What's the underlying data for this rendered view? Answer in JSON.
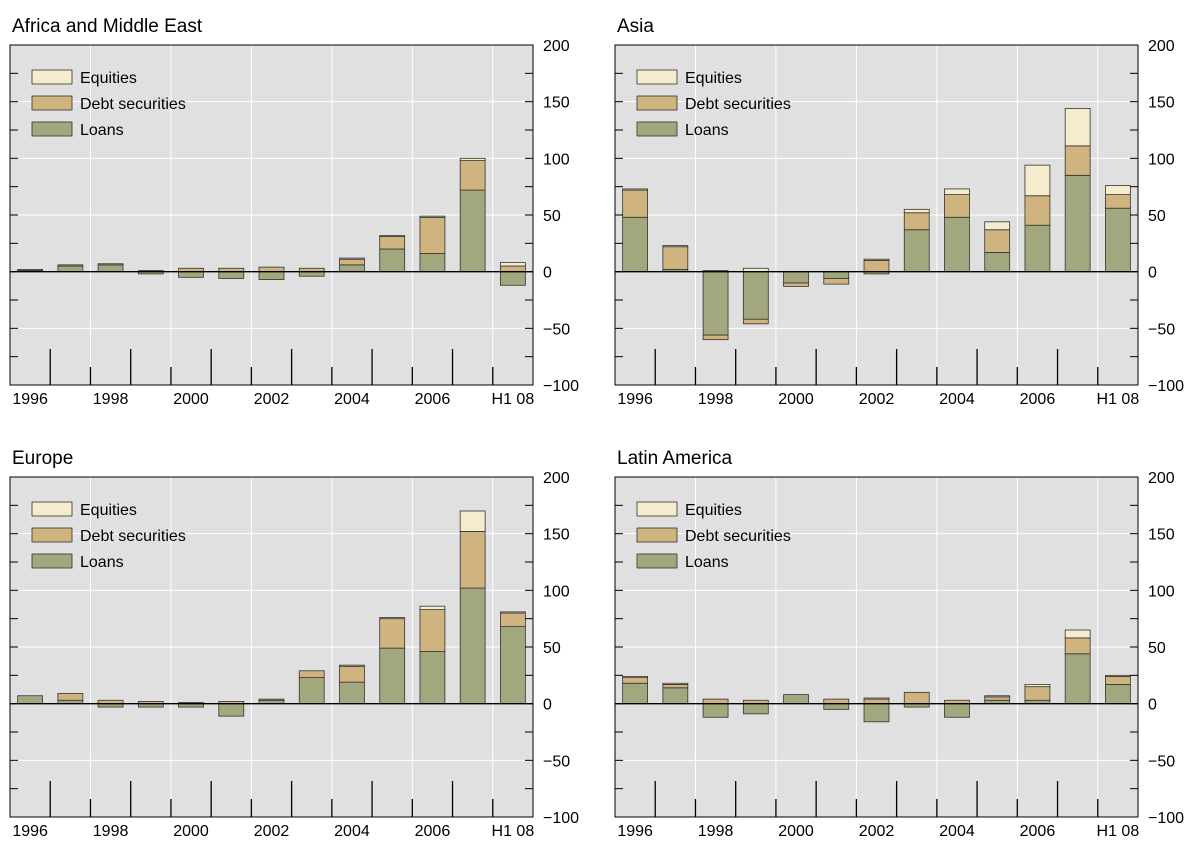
{
  "colors": {
    "equities": "#f4eccc",
    "debt": "#cfb47f",
    "loans": "#a3a77e",
    "plot_bg": "#e0e0e0",
    "grid": "#ffffff"
  },
  "legend": {
    "equities": "Equities",
    "debt": "Debt securities",
    "loans": "Loans"
  },
  "chart_data": [
    {
      "type": "bar",
      "stacked": true,
      "title": "Africa and Middle East",
      "categories": [
        "1996",
        "1997",
        "1998",
        "1999",
        "2000",
        "2001",
        "2002",
        "2003",
        "2004",
        "2005",
        "2006",
        "2007",
        "H1 08"
      ],
      "x_tick_labels": [
        "1996",
        "1998",
        "2000",
        "2002",
        "2004",
        "2006",
        "H1 08"
      ],
      "ylim": [
        -100,
        200
      ],
      "y_ticks": [
        -100,
        -50,
        0,
        50,
        100,
        150,
        200
      ],
      "y_tick_labels": [
        "−100",
        "−50",
        "0",
        "50",
        "100",
        "150",
        "200"
      ],
      "grid": true,
      "legend_position": "top-left",
      "series": [
        {
          "name": "Loans",
          "values": [
            1,
            5,
            6,
            -2,
            -5,
            -6,
            -7,
            -4,
            6,
            20,
            16,
            72,
            -12
          ]
        },
        {
          "name": "Debt securities",
          "values": [
            1,
            1,
            1,
            1,
            3,
            3,
            4,
            3,
            5,
            11,
            32,
            26,
            5
          ]
        },
        {
          "name": "Equities",
          "values": [
            0,
            0,
            0,
            0,
            0,
            0,
            0,
            0,
            1,
            1,
            1,
            2,
            3
          ]
        }
      ]
    },
    {
      "type": "bar",
      "stacked": true,
      "title": "Asia",
      "categories": [
        "1996",
        "1997",
        "1998",
        "1999",
        "2000",
        "2001",
        "2002",
        "2003",
        "2004",
        "2005",
        "2006",
        "2007",
        "H1 08"
      ],
      "x_tick_labels": [
        "1996",
        "1998",
        "2000",
        "2002",
        "2004",
        "2006",
        "H1 08"
      ],
      "ylim": [
        -100,
        200
      ],
      "y_ticks": [
        -100,
        -50,
        0,
        50,
        100,
        150,
        200
      ],
      "y_tick_labels": [
        "−100",
        "−50",
        "0",
        "50",
        "100",
        "150",
        "200"
      ],
      "grid": true,
      "legend_position": "top-left",
      "series": [
        {
          "name": "Loans",
          "values": [
            48,
            2,
            -56,
            -42,
            -10,
            -6,
            -2,
            37,
            48,
            17,
            41,
            85,
            56
          ]
        },
        {
          "name": "Debt securities",
          "values": [
            24,
            20,
            -4,
            -4,
            -3,
            -5,
            10,
            15,
            20,
            20,
            26,
            26,
            12
          ]
        },
        {
          "name": "Equities",
          "values": [
            1,
            1,
            1,
            3,
            0,
            0,
            1,
            3,
            5,
            7,
            27,
            33,
            8
          ]
        }
      ]
    },
    {
      "type": "bar",
      "stacked": true,
      "title": "Europe",
      "categories": [
        "1996",
        "1997",
        "1998",
        "1999",
        "2000",
        "2001",
        "2002",
        "2003",
        "2004",
        "2005",
        "2006",
        "2007",
        "H1 08"
      ],
      "x_tick_labels": [
        "1996",
        "1998",
        "2000",
        "2002",
        "2004",
        "2006",
        "H1 08"
      ],
      "ylim": [
        -100,
        200
      ],
      "y_ticks": [
        -100,
        -50,
        0,
        50,
        100,
        150,
        200
      ],
      "y_tick_labels": [
        "−100",
        "−50",
        "0",
        "50",
        "100",
        "150",
        "200"
      ],
      "grid": true,
      "legend_position": "top-left",
      "series": [
        {
          "name": "Loans",
          "values": [
            7,
            3,
            -3,
            -3,
            -3,
            -11,
            3,
            23,
            19,
            49,
            46,
            102,
            68
          ]
        },
        {
          "name": "Debt securities",
          "values": [
            0,
            6,
            3,
            2,
            1,
            2,
            1,
            6,
            14,
            26,
            37,
            50,
            12
          ]
        },
        {
          "name": "Equities",
          "values": [
            0,
            0,
            0,
            0,
            0,
            0,
            0,
            0,
            1,
            1,
            3,
            18,
            1
          ]
        }
      ]
    },
    {
      "type": "bar",
      "stacked": true,
      "title": "Latin America",
      "categories": [
        "1996",
        "1997",
        "1998",
        "1999",
        "2000",
        "2001",
        "2002",
        "2003",
        "2004",
        "2005",
        "2006",
        "2007",
        "H1 08"
      ],
      "x_tick_labels": [
        "1996",
        "1998",
        "2000",
        "2002",
        "2004",
        "2006",
        "H1 08"
      ],
      "ylim": [
        -100,
        200
      ],
      "y_ticks": [
        -100,
        -50,
        0,
        50,
        100,
        150,
        200
      ],
      "y_tick_labels": [
        "−100",
        "−50",
        "0",
        "50",
        "100",
        "150",
        "200"
      ],
      "grid": true,
      "legend_position": "top-left",
      "series": [
        {
          "name": "Loans",
          "values": [
            18,
            14,
            -12,
            -9,
            8,
            -5,
            -16,
            -3,
            -12,
            3,
            3,
            44,
            17
          ]
        },
        {
          "name": "Debt securities",
          "values": [
            5,
            3,
            4,
            3,
            0,
            4,
            4,
            10,
            3,
            3,
            12,
            14,
            7
          ]
        },
        {
          "name": "Equities",
          "values": [
            1,
            1,
            0,
            0,
            0,
            0,
            1,
            0,
            0,
            1,
            2,
            7,
            1
          ]
        }
      ]
    }
  ]
}
